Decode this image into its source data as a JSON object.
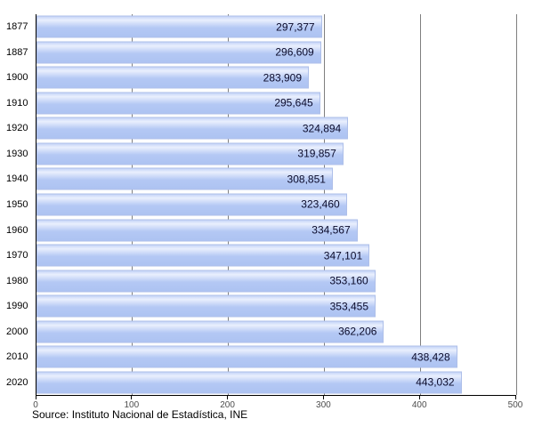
{
  "chart_data": {
    "type": "bar",
    "orientation": "horizontal",
    "title": "",
    "xlabel": "",
    "ylabel": "",
    "categories": [
      "1877",
      "1887",
      "1900",
      "1910",
      "1920",
      "1930",
      "1940",
      "1950",
      "1960",
      "1970",
      "1980",
      "1990",
      "2000",
      "2010",
      "2020"
    ],
    "values": [
      297377,
      296609,
      283909,
      295645,
      324894,
      319857,
      308851,
      323460,
      334567,
      347101,
      353160,
      353455,
      362206,
      438428,
      443032
    ],
    "value_labels": [
      "297,377",
      "296,609",
      "283,909",
      "295,645",
      "324,894",
      "319,857",
      "308,851",
      "323,460",
      "334,567",
      "347,101",
      "353,160",
      "353,455",
      "362,206",
      "438,428",
      "443,032"
    ],
    "xlim": [
      0,
      500
    ],
    "x_ticks": [
      0,
      100,
      200,
      300,
      400,
      500
    ],
    "x_tick_labels": [
      "0",
      "100",
      "200",
      "300",
      "400",
      "500"
    ],
    "values_per_axis_unit": 1000,
    "grid": true,
    "legend": false,
    "source": "Source: Instituto Nacional de Estadística, INE"
  },
  "colors": {
    "bar_fill": "#b4c8f4",
    "bar_fill_light": "#e9effd",
    "bar_border": "#aebfe9",
    "gridline": "#7f7f7f",
    "axis": "#000000",
    "value_text": "#0a0a2a",
    "tick_text": "#4d4d4d"
  }
}
